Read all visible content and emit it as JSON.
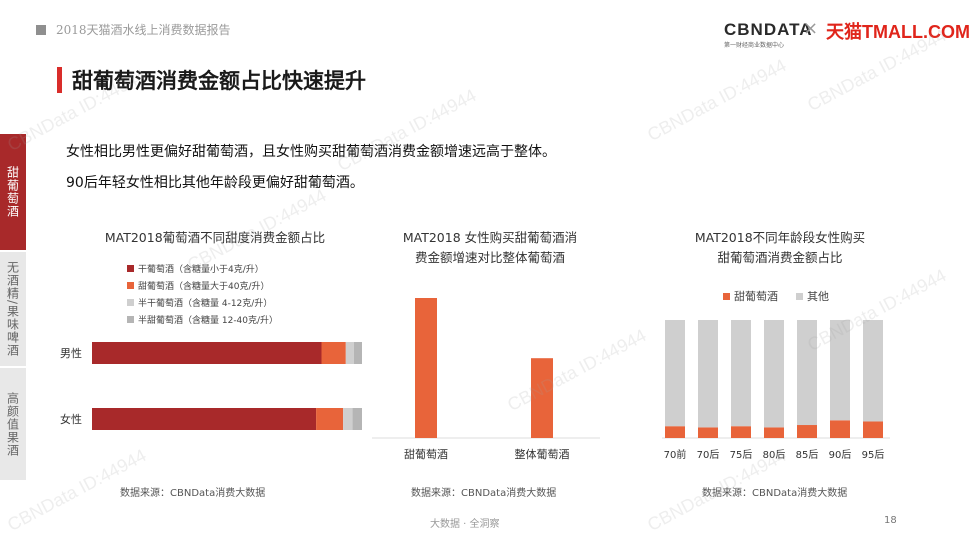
{
  "header": {
    "report_title": "2018天猫酒水线上消费数据报告",
    "logo_cbn": "CBNDATA",
    "logo_cbn_sub": "第一财经商业数据中心",
    "logo_x": "×",
    "logo_tmall": "天猫TMALL.COM"
  },
  "page_title": "甜葡萄酒消费金额占比快速提升",
  "intro": [
    "女性相比男性更偏好甜葡萄酒，且女性购买甜葡萄酒消费金额增速远高于整体。",
    "90后年轻女性相比其他年龄段更偏好甜葡萄酒。"
  ],
  "side_nav": [
    {
      "label": "甜葡萄酒",
      "active": true
    },
    {
      "label": "无酒精/果味啤酒",
      "active": false
    },
    {
      "label": "高颜值果酒",
      "active": false
    }
  ],
  "watermark": "CBNData ID:44944",
  "colors": {
    "dark_red": "#a8292a",
    "orange": "#e8643a",
    "light_gray": "#cfcfcf",
    "mid_gray": "#b5b5b5",
    "accent": "#d92d2a"
  },
  "chart_data": [
    {
      "type": "bar",
      "orientation": "horizontal",
      "stacked": true,
      "title": "MAT2018葡萄酒不同甜度消费金额占比",
      "categories": [
        "男性",
        "女性"
      ],
      "series": [
        {
          "name": "干葡萄酒（含糖量小于4克/升）",
          "values": [
            85,
            83
          ]
        },
        {
          "name": "甜葡萄酒（含糖量大于40克/升）",
          "values": [
            9,
            10
          ]
        },
        {
          "name": "半干葡萄酒（含糖量 4-12克/升）",
          "values": [
            3,
            3.5
          ]
        },
        {
          "name": "半甜葡萄酒（含糖量 12-40克/升）",
          "values": [
            3,
            3.5
          ]
        }
      ],
      "source": "数据来源：CBNData消费大数据"
    },
    {
      "type": "bar",
      "title": "MAT2018 女性购买甜葡萄酒消费金额增速对比整体葡萄酒",
      "title_lines": [
        "MAT2018 女性购买甜葡萄酒消",
        "费金额增速对比整体葡萄酒"
      ],
      "categories": [
        "甜葡萄酒",
        "整体葡萄酒"
      ],
      "values": [
        100,
        57
      ],
      "source": "数据来源：CBNData消费大数据"
    },
    {
      "type": "bar",
      "stacked": true,
      "title": "MAT2018不同年龄段女性购买甜葡萄酒消费金额占比",
      "title_lines": [
        "MAT2018不同年龄段女性购买",
        "甜葡萄酒消费金额占比"
      ],
      "categories": [
        "70前",
        "70后",
        "75后",
        "80后",
        "85后",
        "90后",
        "95后"
      ],
      "series": [
        {
          "name": "甜葡萄酒",
          "values": [
            10,
            9,
            10,
            9,
            11,
            15,
            14
          ]
        },
        {
          "name": "其他",
          "values": [
            90,
            91,
            90,
            91,
            89,
            85,
            86
          ]
        }
      ],
      "source": "数据来源：CBNData消费大数据"
    }
  ],
  "footer": "大数据 · 全洞察",
  "page_number": "18"
}
